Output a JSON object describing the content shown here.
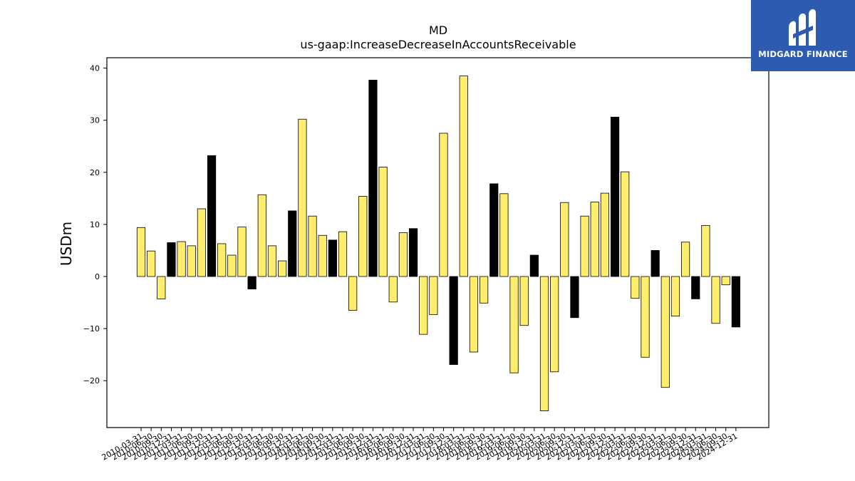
{
  "logo": {
    "text": "MIDGARD FINANCE",
    "color": "#2d5bb0"
  },
  "chart_data": {
    "type": "bar",
    "title": "MD",
    "subtitle": "us-gaap:IncreaseDecreaseInAccountsReceivable",
    "xlabel": "",
    "ylabel": "USDm",
    "ylim": [
      -29,
      42
    ],
    "yticks": [
      40,
      30,
      20,
      10,
      0,
      -10,
      -20
    ],
    "grid": false,
    "colors": {
      "quarter": "#ffee6e",
      "annual": "#000000",
      "edge": "#000000"
    },
    "categories": [
      "2010-03-31",
      "2010-06-30",
      "2010-09-30",
      "2010-12-31",
      "2011-03-31",
      "2011-06-30",
      "2011-09-30",
      "2011-12-31",
      "2012-03-31",
      "2012-06-30",
      "2012-09-30",
      "2012-12-31",
      "2013-03-31",
      "2013-06-30",
      "2013-09-30",
      "2013-12-31",
      "2014-03-31",
      "2014-06-30",
      "2014-09-30",
      "2014-12-31",
      "2015-03-31",
      "2015-06-30",
      "2015-09-30",
      "2015-12-31",
      "2016-03-31",
      "2016-06-30",
      "2016-09-30",
      "2016-12-31",
      "2017-03-31",
      "2017-06-30",
      "2017-09-30",
      "2017-12-31",
      "2018-03-31",
      "2018-06-30",
      "2018-09-30",
      "2018-12-31",
      "2019-03-31",
      "2019-06-30",
      "2019-09-30",
      "2019-12-31",
      "2020-03-31",
      "2020-06-30",
      "2020-09-30",
      "2020-12-31",
      "2021-03-31",
      "2021-06-30",
      "2021-09-30",
      "2021-12-31",
      "2022-03-31",
      "2022-06-30",
      "2022-09-30",
      "2022-12-31",
      "2023-03-31",
      "2023-06-30",
      "2023-09-30",
      "2023-12-31",
      "2024-03-31",
      "2024-06-30",
      "2024-09-30",
      "2024-12-31"
    ],
    "values": [
      9.4,
      4.9,
      -4.3,
      6.5,
      6.7,
      5.9,
      13.0,
      23.2,
      6.3,
      4.1,
      9.5,
      -2.4,
      15.7,
      5.9,
      3.0,
      12.6,
      30.2,
      11.6,
      7.9,
      7.0,
      8.6,
      -6.5,
      15.4,
      37.7,
      21.0,
      -4.9,
      8.4,
      9.2,
      -11.1,
      -7.3,
      27.5,
      -16.9,
      38.5,
      -14.5,
      -5.1,
      17.8,
      15.9,
      -18.5,
      -9.4,
      4.1,
      -25.8,
      -18.3,
      14.2,
      -7.9,
      11.6,
      14.3,
      16.0,
      30.6,
      20.1,
      -4.2,
      -15.5,
      5.0,
      -21.3,
      -7.6,
      6.6,
      -4.3,
      9.8,
      -9.0,
      -1.6,
      -9.7
    ],
    "annual": [
      false,
      false,
      false,
      true,
      false,
      false,
      false,
      true,
      false,
      false,
      false,
      true,
      false,
      false,
      false,
      true,
      false,
      false,
      false,
      true,
      false,
      false,
      false,
      true,
      false,
      false,
      false,
      true,
      false,
      false,
      false,
      true,
      false,
      false,
      false,
      true,
      false,
      false,
      false,
      true,
      false,
      false,
      false,
      true,
      false,
      false,
      false,
      true,
      false,
      false,
      false,
      true,
      false,
      false,
      false,
      true,
      false,
      false,
      false,
      true
    ]
  }
}
